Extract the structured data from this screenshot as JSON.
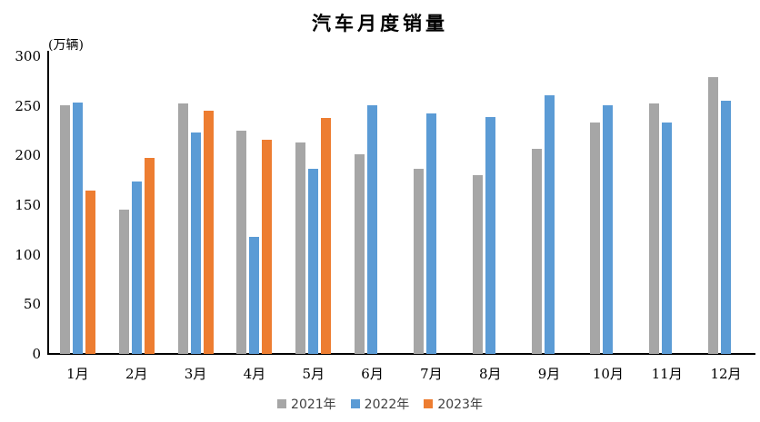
{
  "chart_data": {
    "type": "bar",
    "title": "汽车月度销量",
    "unit_label": "(万辆)",
    "categories": [
      "1月",
      "2月",
      "3月",
      "4月",
      "5月",
      "6月",
      "7月",
      "8月",
      "9月",
      "10月",
      "11月",
      "12月"
    ],
    "series": [
      {
        "name": "2021年",
        "color": "#a6a6a6",
        "values": [
          250.3,
          145.5,
          252.6,
          225.2,
          212.8,
          201.5,
          186.4,
          179.9,
          206.7,
          233.3,
          252.2,
          278.6
        ]
      },
      {
        "name": "2022年",
        "color": "#5b9bd5",
        "values": [
          253.1,
          173.7,
          223.4,
          118.1,
          186.2,
          250.2,
          242.0,
          238.3,
          261.0,
          250.5,
          232.8,
          255.6
        ]
      },
      {
        "name": "2023年",
        "color": "#ed7d31",
        "values": [
          164.9,
          197.6,
          245.1,
          215.9,
          238.2,
          null,
          null,
          null,
          null,
          null,
          null,
          null
        ]
      }
    ],
    "ylim": [
      0,
      300
    ],
    "yticks": [
      0,
      50,
      100,
      150,
      200,
      250,
      300
    ],
    "grid": false,
    "legend_position": "bottom",
    "axis_color": "#000000"
  }
}
